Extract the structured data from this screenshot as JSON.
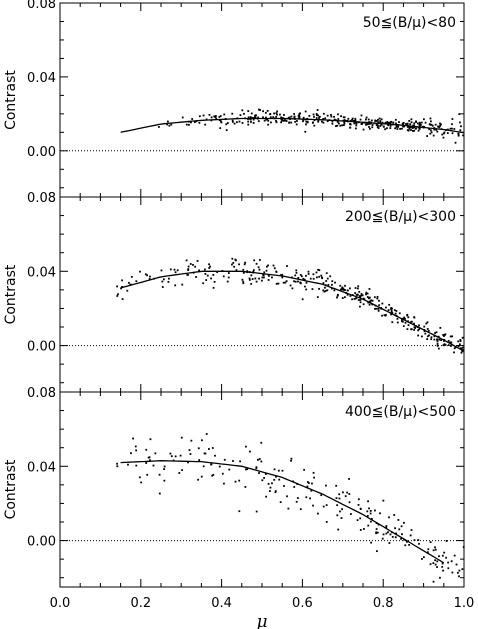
{
  "chart_data": [
    {
      "type": "scatter",
      "title": "",
      "label": "50≦(B/μ)<80",
      "xlabel": "μ",
      "ylabel": "Contrast",
      "xlim": [
        0.0,
        1.0
      ],
      "ylim": [
        -0.025,
        0.08
      ],
      "yticks": [
        0.0,
        0.04,
        0.08
      ],
      "ytick_labels": [
        "0.00",
        "0.04",
        "0.08"
      ],
      "show_xtick_labels": false,
      "zero_line": "dotted",
      "fit_curve": {
        "x": [
          0.15,
          0.25,
          0.35,
          0.45,
          0.55,
          0.65,
          0.75,
          0.85,
          0.95,
          1.0
        ],
        "y": [
          0.01,
          0.0145,
          0.0165,
          0.0175,
          0.0175,
          0.0168,
          0.0155,
          0.0138,
          0.0115,
          0.0098
        ]
      },
      "scatter_seed": 11,
      "scatter_clusters": [
        {
          "x_range": [
            0.24,
            0.3
          ],
          "n": 5,
          "spread": 0.0015
        },
        {
          "x_range": [
            0.3,
            0.45
          ],
          "n": 40,
          "spread": 0.002
        },
        {
          "x_range": [
            0.45,
            0.7
          ],
          "n": 140,
          "spread": 0.0018
        },
        {
          "x_range": [
            0.7,
            0.9
          ],
          "n": 160,
          "spread": 0.0016
        },
        {
          "x_range": [
            0.9,
            1.0
          ],
          "n": 50,
          "spread": 0.0028
        }
      ]
    },
    {
      "type": "scatter",
      "title": "",
      "label": "200≦(B/μ)<300",
      "xlabel": "μ",
      "ylabel": "Contrast",
      "xlim": [
        0.0,
        1.0
      ],
      "ylim": [
        -0.025,
        0.08
      ],
      "yticks": [
        0.0,
        0.04,
        0.08
      ],
      "ytick_labels": [
        "0.00",
        "0.04",
        "0.08"
      ],
      "show_xtick_labels": false,
      "zero_line": "dotted",
      "fit_curve": {
        "x": [
          0.15,
          0.25,
          0.35,
          0.45,
          0.55,
          0.65,
          0.75,
          0.85,
          0.95,
          1.0
        ],
        "y": [
          0.031,
          0.037,
          0.04,
          0.04,
          0.0375,
          0.033,
          0.025,
          0.014,
          0.003,
          -0.003
        ]
      },
      "scatter_seed": 23,
      "scatter_clusters": [
        {
          "x_range": [
            0.14,
            0.3
          ],
          "n": 30,
          "spread": 0.004
        },
        {
          "x_range": [
            0.3,
            0.45
          ],
          "n": 40,
          "spread": 0.004
        },
        {
          "x_range": [
            0.45,
            0.65
          ],
          "n": 90,
          "spread": 0.0035
        },
        {
          "x_range": [
            0.65,
            0.85
          ],
          "n": 120,
          "spread": 0.0025
        },
        {
          "x_range": [
            0.85,
            1.0
          ],
          "n": 90,
          "spread": 0.0025
        }
      ]
    },
    {
      "type": "scatter",
      "title": "",
      "label": "400≦(B/μ)<500",
      "xlabel": "μ",
      "ylabel": "Contrast",
      "xlim": [
        0.0,
        1.0
      ],
      "ylim": [
        -0.025,
        0.08
      ],
      "yticks": [
        0.0,
        0.04,
        0.08
      ],
      "ytick_labels": [
        "0.00",
        "0.04",
        "0.08"
      ],
      "xticks": [
        0.0,
        0.2,
        0.4,
        0.6,
        0.8,
        1.0
      ],
      "xtick_labels": [
        "0.0",
        "0.2",
        "0.4",
        "0.6",
        "0.8",
        "1.0"
      ],
      "show_xtick_labels": true,
      "zero_line": "dotted",
      "fit_curve": {
        "x": [
          0.15,
          0.25,
          0.35,
          0.45,
          0.55,
          0.65,
          0.75,
          0.85,
          0.95
        ],
        "y": [
          0.042,
          0.043,
          0.0425,
          0.04,
          0.034,
          0.025,
          0.014,
          0.001,
          -0.012
        ]
      },
      "scatter_seed": 37,
      "scatter_clusters": [
        {
          "x_range": [
            0.14,
            0.3
          ],
          "n": 30,
          "spread": 0.007
        },
        {
          "x_range": [
            0.3,
            0.5
          ],
          "n": 45,
          "spread": 0.009
        },
        {
          "x_range": [
            0.5,
            0.7
          ],
          "n": 55,
          "spread": 0.007
        },
        {
          "x_range": [
            0.7,
            0.85
          ],
          "n": 55,
          "spread": 0.0055
        },
        {
          "x_range": [
            0.85,
            1.0
          ],
          "n": 45,
          "spread": 0.005
        }
      ]
    }
  ]
}
